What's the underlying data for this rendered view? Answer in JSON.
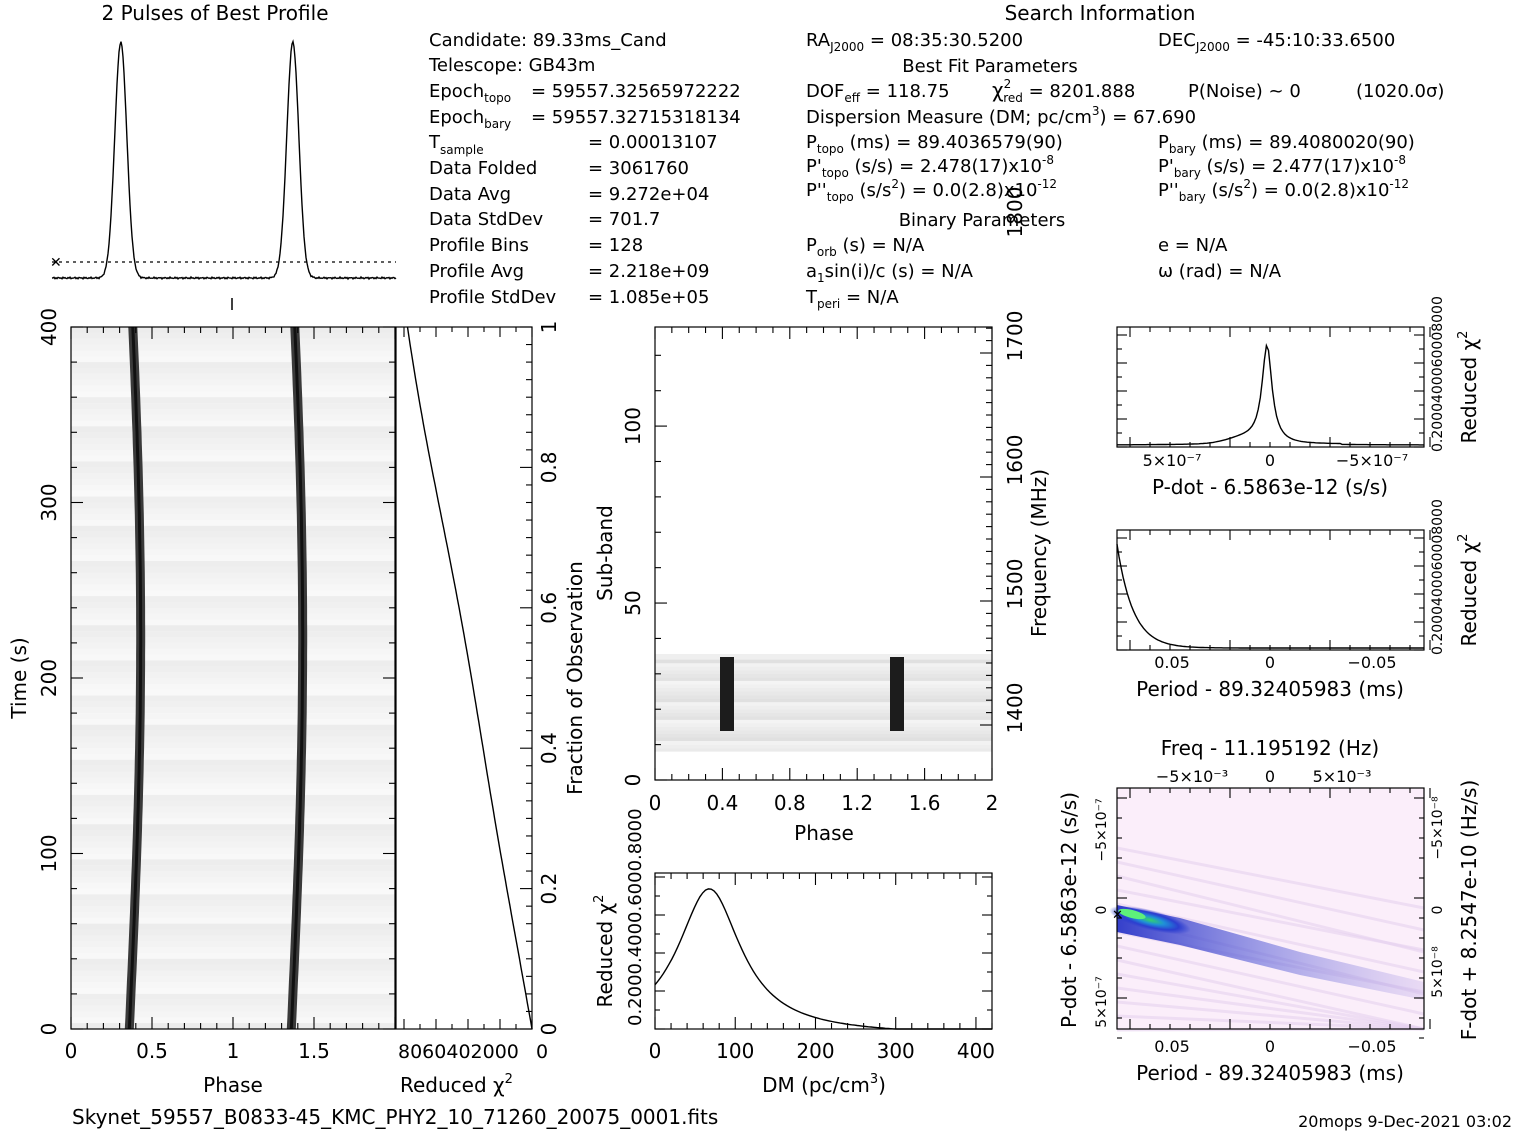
{
  "header": {
    "profile_title": "2 Pulses of Best Profile",
    "search_title": "Search Information",
    "best_fit_title": "Best Fit Parameters",
    "binary_title": "Binary Parameters",
    "footer_filename": "Skynet_59557_B0833-45_KMC_PHY2_10_71260_20075_0001.fits",
    "footer_stamp": "20mops  9-Dec-2021 03:02"
  },
  "candidate_info": {
    "candidate": "Candidate:  89.33ms_Cand",
    "telescope": "Telescope:  GB43m",
    "epoch_topo_label": "Epoch",
    "epoch_topo_sub": "topo",
    "epoch_topo_value": "= 59557.32565972222",
    "epoch_bary_label": "Epoch",
    "epoch_bary_sub": "bary",
    "epoch_bary_value": "= 59557.32715318134",
    "tsample_label": "T",
    "tsample_sub": "sample",
    "tsample_value": "=   0.00013107",
    "data_folded_label": "Data Folded",
    "data_folded_value": "=   3061760",
    "data_avg_label": "Data Avg",
    "data_avg_value": "=   9.272e+04",
    "data_std_label": "Data StdDev",
    "data_std_value": "=   701.7",
    "profile_bins_label": "Profile Bins",
    "profile_bins_value": "=   128",
    "profile_avg_label": "Profile Avg",
    "profile_avg_value": "=   2.218e+09",
    "profile_std_label": "Profile StdDev",
    "profile_std_value": "=   1.085e+05"
  },
  "search_info": {
    "ra": "RA",
    "ra_sub": "J2000",
    "ra_value": " = 08:35:30.5200",
    "dec": "DEC",
    "dec_sub": "J2000",
    "dec_value": " = -45:10:33.6500",
    "dof_label": "DOF",
    "dof_sub": "eff",
    "dof_value": " = 118.75",
    "chi_label": "χ",
    "chi_sup": "2",
    "chi_sub": "red",
    "chi_value": " = 8201.888",
    "pnoise": "P(Noise) ~ 0",
    "sigma": "(1020.0σ)",
    "dm_label": "Dispersion Measure (DM; pc/cm",
    "dm_sup": "3",
    "dm_value": ") = 67.690",
    "ptopo_label": "P",
    "ptopo_sub": "topo",
    "ptopo_value": " (ms) =  89.4036579(90)",
    "pbary_label": "P",
    "pbary_sub": "bary",
    "pbary_value": " (ms) =  89.4080020(90)",
    "pdtopo_label": "P'",
    "pdtopo_sub": "topo",
    "pdtopo_value": " (s/s) =  2.478(17)x10",
    "pdtopo_exp": "-8",
    "pdbary_label": "P'",
    "pdbary_sub": "bary",
    "pdbary_value": " (s/s) =  2.477(17)x10",
    "pdbary_exp": "-8",
    "pddtopo_label": "P''",
    "pddtopo_sub": "topo",
    "pddtopo_value": " (s/s",
    "pddtopo_sup2": "2",
    "pddtopo_value2": ") = 0.0(2.8)x10",
    "pddtopo_exp": "-12",
    "pddbary_label": "P''",
    "pddbary_sub": "bary",
    "pddbary_value": " (s/s",
    "pddbary_sup2": "2",
    "pddbary_value2": ") = 0.0(2.8)x10",
    "pddbary_exp": "-12",
    "porb_label": "P",
    "porb_sub": "orb",
    "porb_value": " (s) = N/A",
    "e_value": "e = N/A",
    "a1_label": "a",
    "a1_sub": "1",
    "a1_value": "sin(i)/c (s) = N/A",
    "omega_value": "ω (rad) = N/A",
    "tperi_label": "T",
    "tperi_sub": "peri",
    "tperi_value": " = N/A"
  },
  "chart_data": [
    {
      "id": "profile",
      "type": "line",
      "title": "2 Pulses of Best Profile",
      "x_range": [
        0,
        2
      ],
      "peaks": [
        0.4,
        1.4
      ],
      "peak_width": 0.035,
      "mean_line": "dotted"
    },
    {
      "id": "time_phase",
      "type": "heatmap",
      "xlabel": "Phase",
      "ylabel": "Time (s)",
      "xlim": [
        0,
        2
      ],
      "ylim": [
        0,
        400
      ],
      "x_ticks": [
        "0",
        "0.5",
        "1",
        "1.5"
      ],
      "y_ticks": [
        "0",
        "100",
        "200",
        "300",
        "400"
      ],
      "pulse_phase_start": 0.36,
      "pulse_phase_end": 0.41,
      "pulse_phase_mid": 0.43
    },
    {
      "id": "reduced_chi2_time",
      "type": "line",
      "xlabel": "Reduced χ",
      "xlabel_sup": "2",
      "ylabel": "Fraction of Observation",
      "x_tick_text": "8060402000",
      "right_ticks": [
        "0",
        "0.2",
        "0.4",
        "0.6",
        "0.8",
        "1"
      ]
    },
    {
      "id": "subband_phase",
      "type": "heatmap",
      "xlabel": "Phase",
      "ylabel": "Sub-band",
      "ylabel_right": "Frequency (MHz)",
      "xlim": [
        0,
        2
      ],
      "ylim": [
        0,
        128
      ],
      "x_ticks": [
        "0",
        "0.4",
        "0.8",
        "1.2",
        "1.6",
        "2"
      ],
      "y_ticks": [
        "0",
        "50",
        "100"
      ],
      "freq_ticks": [
        "1400",
        "1500",
        "1600",
        "1700",
        "1800"
      ],
      "band_subbands": [
        14,
        33
      ],
      "pulse_phases": [
        0.42,
        1.42
      ]
    },
    {
      "id": "dm_curve",
      "type": "line",
      "xlabel": "DM (pc/cm",
      "xlabel_sup": "3",
      "xlabel_end": ")",
      "ylabel": "Reduced χ",
      "ylabel_sup": "2",
      "y_tick_text": "0.2000.4000.6000.8000",
      "xlim": [
        0,
        420
      ],
      "x_ticks": [
        "0",
        "100",
        "200",
        "300",
        "400"
      ],
      "peak_dm": 67.69
    },
    {
      "id": "pdot_curve",
      "type": "line",
      "xlabel": "P-dot - 6.5863e-12 (s/s)",
      "ylabel": "Reduced χ",
      "ylabel_sup": "2",
      "y_tick_text": "0.2000400060008000",
      "x_ticks": [
        "5×10⁻⁷",
        "0",
        "−5×10⁻⁷"
      ]
    },
    {
      "id": "period_curve",
      "type": "line",
      "xlabel": "Period - 89.32405983 (ms)",
      "ylabel": "Reduced χ",
      "ylabel_sup": "2",
      "y_tick_text": "0.2000400060008000",
      "x_ticks": [
        "0.05",
        "0",
        "−0.05"
      ]
    },
    {
      "id": "ppdot_plane",
      "type": "heatmap",
      "title": "Freq - 11.195192 (Hz)",
      "top_ticks": [
        "−5×10⁻³",
        "0",
        "5×10⁻³"
      ],
      "xlabel": "Period - 89.32405983 (ms)",
      "x_ticks": [
        "0.05",
        "0",
        "−0.05"
      ],
      "ylabel": "P-dot - 6.5863e-12 (s/s)",
      "y_ticks": [
        "5×10⁻⁷",
        "0",
        "−5×10⁻⁷"
      ],
      "ylabel_right": "F-dot + 8.2547e-10 (Hz/s)",
      "right_ticks": [
        "−5×10⁻⁸",
        "0",
        "5×10⁻⁸"
      ]
    }
  ]
}
